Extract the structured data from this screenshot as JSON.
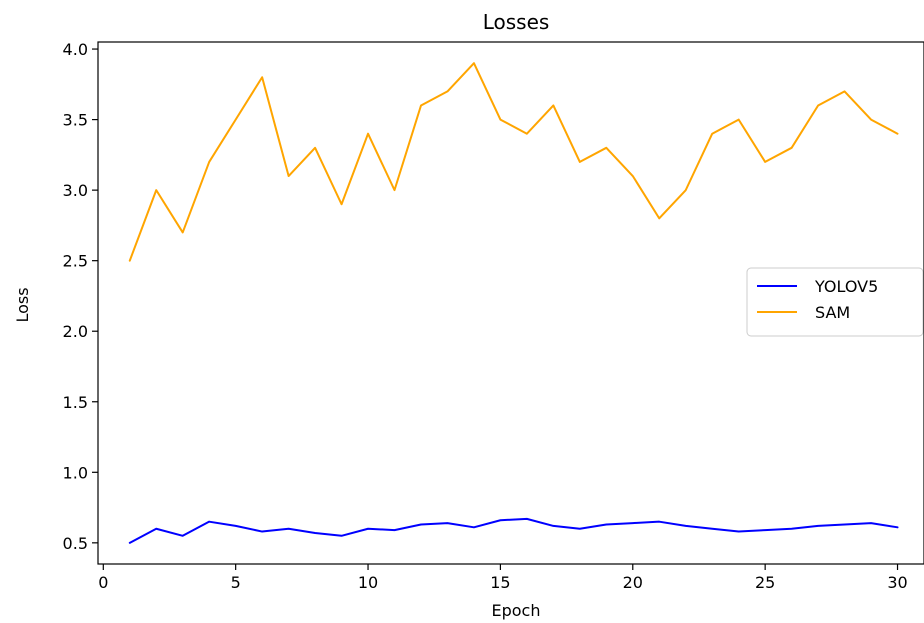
{
  "chart_data": {
    "type": "line",
    "title": "Losses",
    "xlabel": "Epoch",
    "ylabel": "Loss",
    "xlim": [
      -0.2,
      31.0
    ],
    "ylim": [
      0.35,
      4.05
    ],
    "x_ticks": [
      0,
      5,
      10,
      15,
      20,
      25,
      30
    ],
    "y_ticks": [
      0.5,
      1.0,
      1.5,
      2.0,
      2.5,
      3.0,
      3.5,
      4.0
    ],
    "grid": false,
    "legend_placement": "center-right",
    "x": [
      1,
      2,
      3,
      4,
      5,
      6,
      7,
      8,
      9,
      10,
      11,
      12,
      13,
      14,
      15,
      16,
      17,
      18,
      19,
      20,
      21,
      22,
      23,
      24,
      25,
      26,
      27,
      28,
      29,
      30
    ],
    "series": [
      {
        "name": "YOLOV5",
        "color": "#0000ff",
        "values": [
          0.5,
          0.6,
          0.55,
          0.65,
          0.62,
          0.58,
          0.6,
          0.57,
          0.55,
          0.6,
          0.59,
          0.63,
          0.64,
          0.61,
          0.66,
          0.67,
          0.62,
          0.6,
          0.63,
          0.64,
          0.65,
          0.62,
          0.6,
          0.58,
          0.59,
          0.6,
          0.62,
          0.63,
          0.64,
          0.61
        ]
      },
      {
        "name": "SAM",
        "color": "#ffa500",
        "values": [
          2.5,
          3.0,
          2.7,
          3.2,
          3.5,
          3.8,
          3.1,
          3.3,
          2.9,
          3.4,
          3.0,
          3.6,
          3.7,
          3.9,
          3.5,
          3.4,
          3.6,
          3.2,
          3.3,
          3.1,
          2.8,
          3.0,
          3.4,
          3.5,
          3.2,
          3.3,
          3.6,
          3.7,
          3.5,
          3.4
        ]
      }
    ]
  }
}
